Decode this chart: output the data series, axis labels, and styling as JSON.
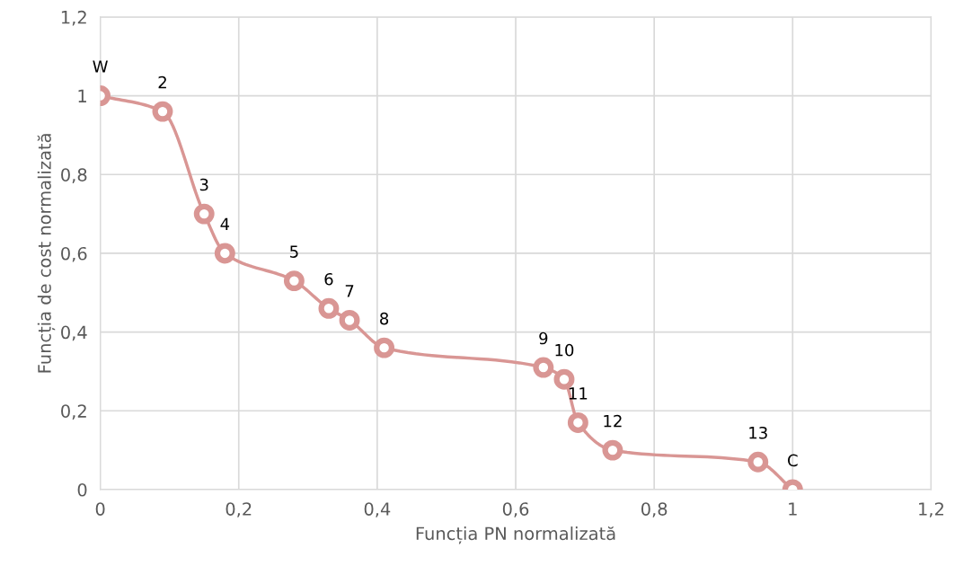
{
  "chart_data": {
    "type": "line",
    "xlabel": "Funcția PN normalizată",
    "ylabel": "Funcția de cost normalizată",
    "x": [
      0,
      0.09,
      0.15,
      0.18,
      0.28,
      0.33,
      0.36,
      0.41,
      0.64,
      0.67,
      0.69,
      0.74,
      0.95,
      1
    ],
    "series": [
      {
        "color": "#d99694",
        "values": [
          1,
          0.96,
          0.7,
          0.6,
          0.53,
          0.46,
          0.43,
          0.36,
          0.31,
          0.28,
          0.17,
          0.1,
          0.07,
          0
        ]
      }
    ],
    "annotations": [
      {
        "text": "W",
        "x": 0,
        "y": 1
      },
      {
        "text": "2",
        "x": 0.09,
        "y": 0.96
      },
      {
        "text": "3",
        "x": 0.15,
        "y": 0.7
      },
      {
        "text": "4",
        "x": 0.18,
        "y": 0.6
      },
      {
        "text": "5",
        "x": 0.28,
        "y": 0.53
      },
      {
        "text": "6",
        "x": 0.33,
        "y": 0.46
      },
      {
        "text": "7",
        "x": 0.36,
        "y": 0.43
      },
      {
        "text": "8",
        "x": 0.41,
        "y": 0.36
      },
      {
        "text": "9",
        "x": 0.64,
        "y": 0.31
      },
      {
        "text": "10",
        "x": 0.67,
        "y": 0.28
      },
      {
        "text": "11",
        "x": 0.69,
        "y": 0.17
      },
      {
        "text": "12",
        "x": 0.74,
        "y": 0.1
      },
      {
        "text": "13",
        "x": 0.95,
        "y": 0.07
      },
      {
        "text": "C",
        "x": 1,
        "y": 0
      }
    ],
    "xlim": [
      0,
      1.2
    ],
    "ylim": [
      0,
      1.2
    ],
    "xticks": [
      {
        "value": 0,
        "label": "0"
      },
      {
        "value": 0.2,
        "label": "0,2"
      },
      {
        "value": 0.4,
        "label": "0,4"
      },
      {
        "value": 0.6,
        "label": "0,6"
      },
      {
        "value": 0.8,
        "label": "0,8"
      },
      {
        "value": 1,
        "label": "1"
      },
      {
        "value": 1.2,
        "label": "1,2"
      }
    ],
    "yticks": [
      {
        "value": 0,
        "label": "0"
      },
      {
        "value": 0.2,
        "label": "0,2"
      },
      {
        "value": 0.4,
        "label": "0,4"
      },
      {
        "value": 0.6,
        "label": "0,6"
      },
      {
        "value": 0.8,
        "label": "0,8"
      },
      {
        "value": 1,
        "label": "1"
      },
      {
        "value": 1.2,
        "label": "1,2"
      }
    ],
    "grid": true,
    "marker": "circle",
    "line_style": "solid",
    "legend": false
  }
}
